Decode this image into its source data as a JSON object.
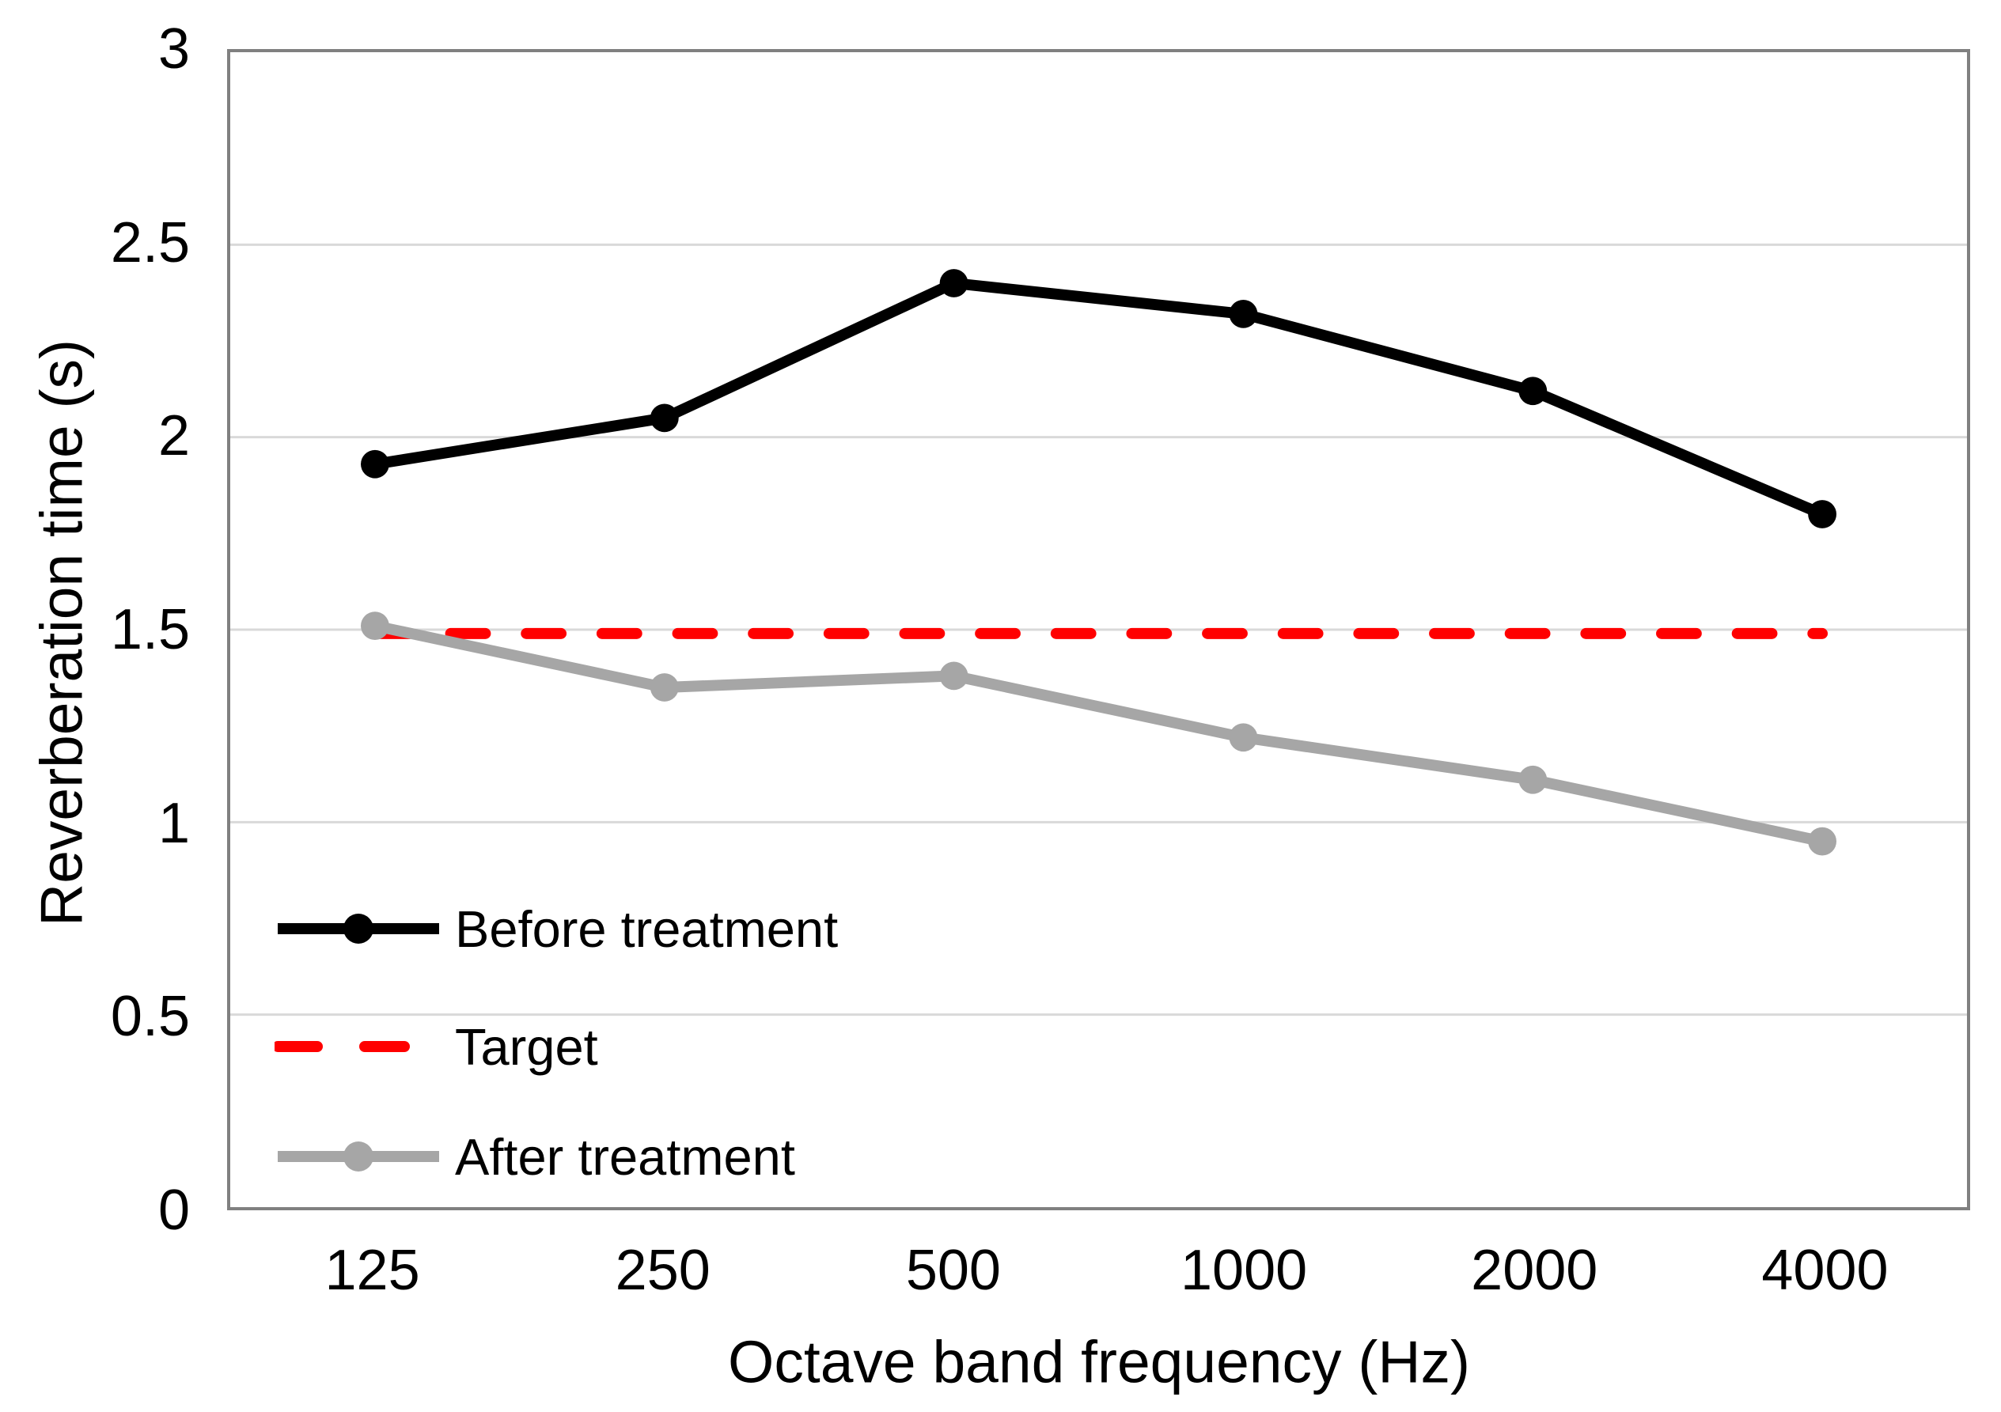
{
  "chart_data": {
    "type": "line",
    "title": "",
    "xlabel": "Octave band frequency (Hz)",
    "ylabel": "Reverberation time (s)",
    "categories": [
      125,
      250,
      500,
      1000,
      2000,
      4000
    ],
    "x_tick_labels": [
      "125",
      "250",
      "500",
      "1000",
      "2000",
      "4000"
    ],
    "y_ticks": [
      0,
      0.5,
      1,
      1.5,
      2,
      2.5,
      3
    ],
    "y_tick_labels": [
      "0",
      "0.5",
      "1",
      "1.5",
      "2",
      "2.5",
      "3"
    ],
    "ylim": [
      0,
      3
    ],
    "grid": "horizontal",
    "legend_position": "inside-bottom-left",
    "series": [
      {
        "name": "Before treatment",
        "color": "#000000",
        "style": "solid",
        "marker": "circle",
        "values": [
          1.93,
          2.05,
          2.4,
          2.32,
          2.12,
          1.8
        ]
      },
      {
        "name": "Target",
        "color": "#ff0000",
        "style": "dashed",
        "marker": "none",
        "values": [
          1.49,
          1.49,
          1.49,
          1.49,
          1.49,
          1.49
        ]
      },
      {
        "name": "After treatment",
        "color": "#a6a6a6",
        "style": "solid",
        "marker": "circle",
        "values": [
          1.51,
          1.35,
          1.38,
          1.22,
          1.11,
          0.95
        ]
      }
    ],
    "colors": {
      "gridline": "#d9d9d9",
      "plot_border": "#808080",
      "text": "#000000"
    }
  }
}
